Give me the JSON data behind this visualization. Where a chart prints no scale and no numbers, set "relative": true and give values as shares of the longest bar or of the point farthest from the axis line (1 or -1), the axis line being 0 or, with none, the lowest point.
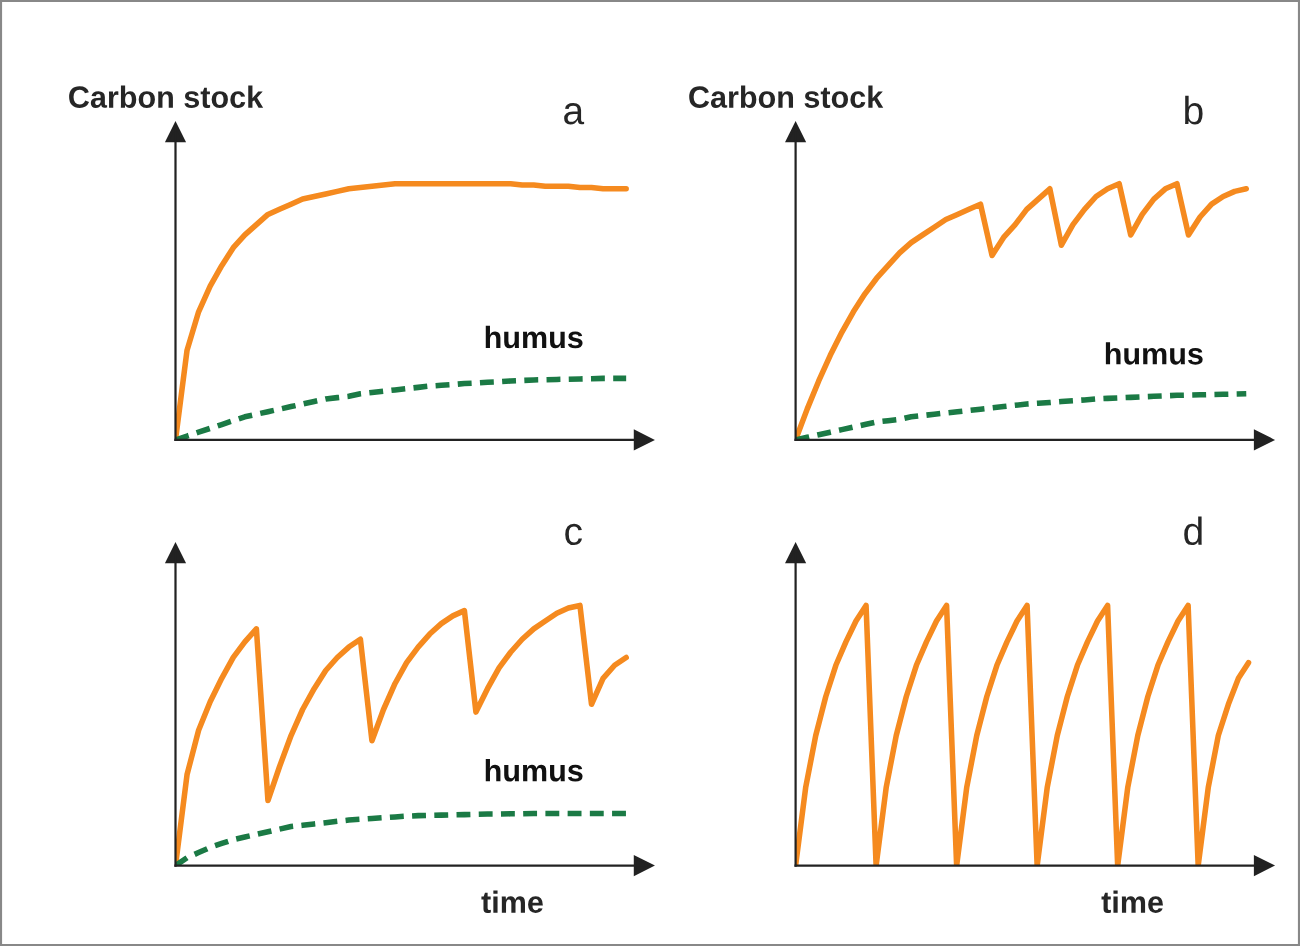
{
  "chart_data": [
    {
      "type": "line",
      "relative": true,
      "ylabel": "Carbon stock",
      "annotations": [
        "a"
      ],
      "grid": false,
      "legend": false,
      "marker": "none",
      "categories": [
        null,
        null,
        null,
        null,
        null,
        null,
        null,
        null,
        null,
        null,
        null,
        null,
        null,
        null,
        null,
        null,
        null,
        null,
        null,
        null,
        null,
        null,
        null,
        null,
        null,
        null,
        null,
        null,
        null,
        null,
        null,
        null,
        null,
        null,
        null,
        null,
        null,
        null,
        null,
        null
      ],
      "series": [
        {
          "color": "#f58a1f",
          "line_style": "solid",
          "values": [
            0,
            0.35,
            0.5,
            0.6,
            0.68,
            0.75,
            0.8,
            0.84,
            0.88,
            0.9,
            0.92,
            0.94,
            0.95,
            0.96,
            0.97,
            0.98,
            0.985,
            0.99,
            0.995,
            1.0,
            1.0,
            1.0,
            1.0,
            1.0,
            1.0,
            1.0,
            1.0,
            1.0,
            1.0,
            1.0,
            0.995,
            0.995,
            0.99,
            0.99,
            0.99,
            0.985,
            0.985,
            0.98,
            0.98,
            0.98
          ]
        },
        {
          "name": "humus",
          "color": "#1b7a45",
          "line_style": "dashed",
          "values": [
            0,
            0.015,
            0.03,
            0.045,
            0.06,
            0.075,
            0.09,
            0.1,
            0.11,
            0.12,
            0.13,
            0.14,
            0.15,
            0.16,
            0.165,
            0.17,
            0.18,
            0.185,
            0.19,
            0.195,
            0.2,
            0.205,
            0.21,
            0.213,
            0.216,
            0.22,
            0.222,
            0.225,
            0.227,
            0.23,
            0.232,
            0.234,
            0.235,
            0.236,
            0.237,
            0.238,
            0.239,
            0.24,
            0.24,
            0.24
          ]
        }
      ]
    },
    {
      "type": "line",
      "relative": true,
      "ylabel": "Carbon stock",
      "annotations": [
        "b"
      ],
      "grid": false,
      "legend": false,
      "marker": "none",
      "categories": [
        null,
        null,
        null,
        null,
        null,
        null,
        null,
        null,
        null,
        null,
        null,
        null,
        null,
        null,
        null,
        null,
        null,
        null,
        null,
        null,
        null,
        null,
        null,
        null,
        null,
        null,
        null,
        null,
        null,
        null,
        null,
        null,
        null,
        null,
        null,
        null,
        null,
        null,
        null,
        null
      ],
      "series": [
        {
          "color": "#f58a1f",
          "line_style": "solid",
          "values": [
            0,
            0.12,
            0.23,
            0.33,
            0.42,
            0.5,
            0.57,
            0.63,
            0.68,
            0.73,
            0.77,
            0.8,
            0.83,
            0.86,
            0.88,
            0.9,
            0.92,
            0.72,
            0.79,
            0.84,
            0.9,
            0.94,
            0.98,
            0.76,
            0.84,
            0.9,
            0.95,
            0.98,
            1.0,
            0.8,
            0.88,
            0.94,
            0.98,
            1.0,
            0.8,
            0.87,
            0.92,
            0.95,
            0.97,
            0.98
          ]
        },
        {
          "name": "humus",
          "color": "#1b7a45",
          "line_style": "dashed",
          "values": [
            0,
            0.01,
            0.02,
            0.03,
            0.04,
            0.05,
            0.06,
            0.07,
            0.075,
            0.08,
            0.09,
            0.095,
            0.1,
            0.105,
            0.11,
            0.115,
            0.12,
            0.125,
            0.13,
            0.135,
            0.14,
            0.143,
            0.146,
            0.15,
            0.153,
            0.156,
            0.16,
            0.162,
            0.164,
            0.166,
            0.168,
            0.17,
            0.172,
            0.174,
            0.175,
            0.176,
            0.177,
            0.178,
            0.179,
            0.18
          ]
        }
      ]
    },
    {
      "type": "line",
      "relative": true,
      "xlabel": "time",
      "annotations": [
        "c"
      ],
      "grid": false,
      "legend": false,
      "marker": "none",
      "categories": [
        null,
        null,
        null,
        null,
        null,
        null,
        null,
        null,
        null,
        null,
        null,
        null,
        null,
        null,
        null,
        null,
        null,
        null,
        null,
        null,
        null,
        null,
        null,
        null,
        null,
        null,
        null,
        null,
        null,
        null,
        null,
        null,
        null,
        null,
        null,
        null,
        null,
        null,
        null,
        null
      ],
      "series": [
        {
          "color": "#f58a1f",
          "line_style": "solid",
          "values": [
            0,
            0.35,
            0.52,
            0.63,
            0.72,
            0.8,
            0.86,
            0.91,
            0.25,
            0.38,
            0.5,
            0.6,
            0.68,
            0.75,
            0.8,
            0.84,
            0.87,
            0.48,
            0.6,
            0.7,
            0.78,
            0.84,
            0.89,
            0.93,
            0.96,
            0.98,
            0.59,
            0.68,
            0.76,
            0.82,
            0.87,
            0.91,
            0.94,
            0.97,
            0.99,
            1.0,
            0.62,
            0.72,
            0.77,
            0.8
          ]
        },
        {
          "name": "humus",
          "color": "#1b7a45",
          "line_style": "dashed",
          "values": [
            0,
            0.03,
            0.05,
            0.07,
            0.085,
            0.1,
            0.11,
            0.12,
            0.13,
            0.14,
            0.15,
            0.155,
            0.16,
            0.165,
            0.17,
            0.175,
            0.178,
            0.181,
            0.184,
            0.187,
            0.19,
            0.192,
            0.193,
            0.194,
            0.195,
            0.196,
            0.197,
            0.198,
            0.198,
            0.199,
            0.199,
            0.2,
            0.2,
            0.2,
            0.2,
            0.2,
            0.2,
            0.2,
            0.2,
            0.2
          ]
        }
      ]
    },
    {
      "type": "line",
      "relative": true,
      "xlabel": "time",
      "annotations": [
        "d"
      ],
      "grid": false,
      "legend": false,
      "marker": "none",
      "categories": [
        null,
        null,
        null,
        null,
        null,
        null,
        null,
        null,
        null,
        null,
        null,
        null,
        null,
        null,
        null,
        null,
        null,
        null,
        null,
        null,
        null,
        null,
        null,
        null,
        null,
        null,
        null,
        null,
        null,
        null,
        null,
        null,
        null,
        null,
        null,
        null,
        null,
        null,
        null,
        null,
        null,
        null,
        null,
        null,
        null,
        null
      ],
      "series": [
        {
          "color": "#f58a1f",
          "line_style": "solid",
          "values": [
            0,
            0.3,
            0.5,
            0.65,
            0.77,
            0.86,
            0.94,
            1.0,
            0,
            0.3,
            0.5,
            0.65,
            0.77,
            0.86,
            0.94,
            1.0,
            0,
            0.3,
            0.5,
            0.65,
            0.77,
            0.86,
            0.94,
            1.0,
            0,
            0.3,
            0.5,
            0.65,
            0.77,
            0.86,
            0.94,
            1.0,
            0,
            0.3,
            0.5,
            0.65,
            0.77,
            0.86,
            0.94,
            1.0,
            0,
            0.3,
            0.5,
            0.62,
            0.72,
            0.78
          ]
        }
      ]
    }
  ]
}
